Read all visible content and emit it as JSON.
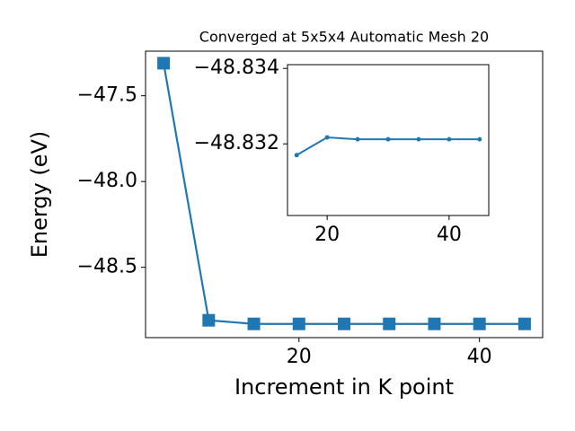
{
  "chart_data": [
    {
      "type": "line",
      "title": "Converged at 5x5x4 Automatic Mesh 20",
      "x_label": "Increment in K point",
      "y_label": "Energy (eV)",
      "x": [
        5,
        10,
        15,
        20,
        25,
        30,
        35,
        40,
        45
      ],
      "series": [
        {
          "color": "#1f77b4",
          "marker": "square",
          "values": [
            -47.31,
            -48.809,
            -48.83,
            -48.83,
            -48.83,
            -48.83,
            -48.83,
            -48.83,
            -48.83
          ]
        }
      ],
      "xlim": [
        3,
        47
      ],
      "ylim": [
        -48.91,
        -47.24
      ],
      "xticks": [
        20,
        40
      ],
      "yticks": [
        {
          "value": -48.5,
          "label": "−48.5"
        },
        {
          "value": -48.0,
          "label": "−48.0"
        },
        {
          "value": -47.5,
          "label": "−47.5"
        }
      ]
    },
    {
      "type": "line",
      "x": [
        15,
        20,
        25,
        30,
        35,
        40,
        45
      ],
      "series": [
        {
          "color": "#1f77b4",
          "marker": "circle",
          "values": [
            -48.8317,
            -48.83217,
            -48.83212,
            -48.83212,
            -48.83212,
            -48.83212,
            -48.83212
          ]
        }
      ],
      "xlim": [
        13.5,
        46.5
      ],
      "ylim": [
        -48.8301,
        -48.8341
      ],
      "xticks": [
        20,
        40
      ],
      "yticks": [
        {
          "value": -48.832,
          "label": "−48.832"
        },
        {
          "value": -48.834,
          "label": "−48.834"
        }
      ]
    }
  ]
}
